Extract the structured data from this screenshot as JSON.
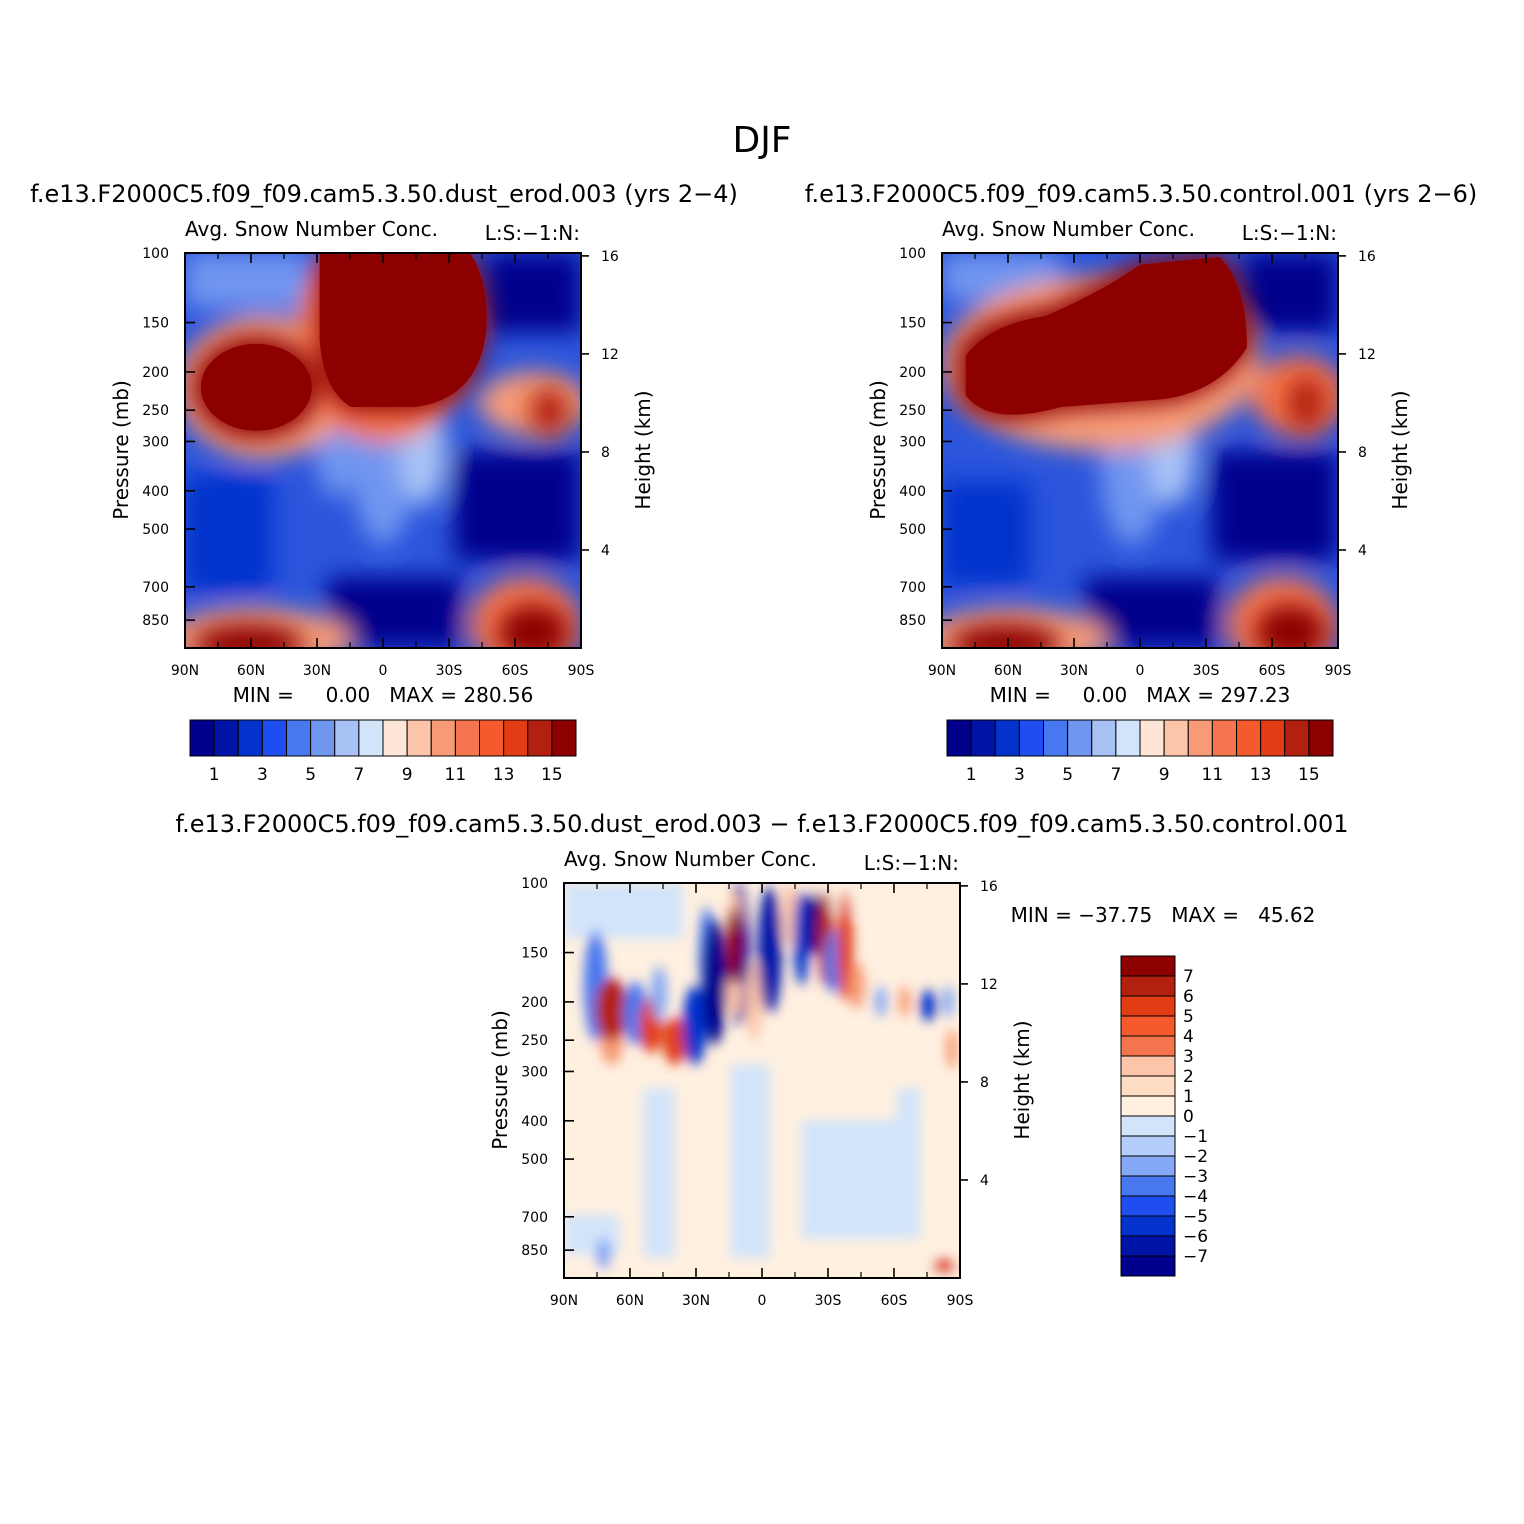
{
  "figure_title": "DJF",
  "panels": [
    {
      "case_title": "f.e13.F2000C5.f09_f09.cam5.3.50.dust_erod.003 (yrs 2−4)",
      "subtitle": "Avg. Snow Number Conc.",
      "right_string": "L:S:−1:N:",
      "min_max": "MIN =     0.00   MAX = 280.56"
    },
    {
      "case_title": "f.e13.F2000C5.f09_f09.cam5.3.50.control.001 (yrs 2−6)",
      "subtitle": "Avg. Snow Number Conc.",
      "right_string": "L:S:−1:N:",
      "min_max": "MIN =     0.00   MAX = 297.23"
    },
    {
      "case_title": "f.e13.F2000C5.f09_f09.cam5.3.50.dust_erod.003 − f.e13.F2000C5.f09_f09.cam5.3.50.control.001",
      "subtitle": "Avg. Snow Number Conc.",
      "right_string": "L:S:−1:N:",
      "min_max": "MIN = −37.75   MAX =   45.62"
    }
  ],
  "chart_data": [
    {
      "type": "heatmap",
      "panel": "dust_erod.003",
      "xlabel": "",
      "ylabel": "Pressure (mb)",
      "ylabel_right": "Height (km)",
      "x_tick_labels": [
        "90N",
        "60N",
        "30N",
        "0",
        "30S",
        "60S",
        "90S"
      ],
      "x_tick_values": [
        90,
        60,
        30,
        0,
        -30,
        -60,
        -90
      ],
      "xlim": [
        90,
        -90
      ],
      "y_tick_values": [
        100,
        150,
        200,
        250,
        300,
        400,
        500,
        700,
        850
      ],
      "y_tick_labels": [
        "100",
        "150",
        "200",
        "250",
        "300",
        "400",
        "500",
        "700",
        "850"
      ],
      "ylim": [
        100,
        1000
      ],
      "y_scale": "log",
      "y_right_tick_labels": [
        "16",
        "12",
        "8",
        "4"
      ],
      "y_right_tick_values": [
        16,
        12,
        8,
        4
      ],
      "colorbar_labels": [
        "1",
        "3",
        "5",
        "7",
        "9",
        "11",
        "13",
        "15"
      ],
      "colorbar_orientation": "horizontal",
      "colors": [
        "#00008c",
        "#0015a8",
        "#0432cc",
        "#1f4ef0",
        "#4878f0",
        "#7196f0",
        "#a8c2f5",
        "#d2e4fa",
        "#fde6d6",
        "#fcc4a8",
        "#f79b77",
        "#f5764e",
        "#f55a2c",
        "#e13c14",
        "#b42010",
        "#8c0000"
      ],
      "min": 0.0,
      "max": 280.56,
      "features": [
        {
          "lat_range": [
            0,
            -30
          ],
          "p_range": [
            100,
            250
          ],
          "value": "high"
        },
        {
          "lat_range": [
            90,
            35
          ],
          "p_range": [
            160,
            280
          ],
          "value": "high"
        },
        {
          "lat_range": [
            90,
            30
          ],
          "p_range": [
            800,
            1000
          ],
          "value": "high"
        },
        {
          "lat_range": [
            -55,
            -85
          ],
          "p_range": [
            780,
            1000
          ],
          "value": "high"
        },
        {
          "lat_range": [
            -60,
            -90
          ],
          "p_range": [
            100,
            160
          ],
          "value": "low"
        }
      ]
    },
    {
      "type": "heatmap",
      "panel": "control.001",
      "xlabel": "",
      "ylabel": "Pressure (mb)",
      "ylabel_right": "Height (km)",
      "x_tick_labels": [
        "90N",
        "60N",
        "30N",
        "0",
        "30S",
        "60S",
        "90S"
      ],
      "x_tick_values": [
        90,
        60,
        30,
        0,
        -30,
        -60,
        -90
      ],
      "xlim": [
        90,
        -90
      ],
      "y_tick_values": [
        100,
        150,
        200,
        250,
        300,
        400,
        500,
        700,
        850
      ],
      "y_tick_labels": [
        "100",
        "150",
        "200",
        "250",
        "300",
        "400",
        "500",
        "700",
        "850"
      ],
      "ylim": [
        100,
        1000
      ],
      "y_scale": "log",
      "y_right_tick_labels": [
        "16",
        "12",
        "8",
        "4"
      ],
      "y_right_tick_values": [
        16,
        12,
        8,
        4
      ],
      "colorbar_labels": [
        "1",
        "3",
        "5",
        "7",
        "9",
        "11",
        "13",
        "15"
      ],
      "colorbar_orientation": "horizontal",
      "colors": [
        "#00008c",
        "#0015a8",
        "#0432cc",
        "#1f4ef0",
        "#4878f0",
        "#7196f0",
        "#a8c2f5",
        "#d2e4fa",
        "#fde6d6",
        "#fcc4a8",
        "#f79b77",
        "#f5764e",
        "#f55a2c",
        "#e13c14",
        "#b42010",
        "#8c0000"
      ],
      "min": 0.0,
      "max": 297.23,
      "features": [
        {
          "lat_range": [
            80,
            -45
          ],
          "p_range": [
            100,
            260
          ],
          "value": "high"
        },
        {
          "lat_range": [
            90,
            40
          ],
          "p_range": [
            800,
            1000
          ],
          "value": "high"
        },
        {
          "lat_range": [
            -55,
            -85
          ],
          "p_range": [
            780,
            1000
          ],
          "value": "high"
        },
        {
          "lat_range": [
            -55,
            -90
          ],
          "p_range": [
            100,
            160
          ],
          "value": "low"
        }
      ]
    },
    {
      "type": "heatmap",
      "panel": "difference",
      "xlabel": "",
      "ylabel": "Pressure (mb)",
      "ylabel_right": "Height (km)",
      "x_tick_labels": [
        "90N",
        "60N",
        "30N",
        "0",
        "30S",
        "60S",
        "90S"
      ],
      "x_tick_values": [
        90,
        60,
        30,
        0,
        -30,
        -60,
        -90
      ],
      "xlim": [
        90,
        -90
      ],
      "y_tick_values": [
        100,
        150,
        200,
        250,
        300,
        400,
        500,
        700,
        850
      ],
      "y_tick_labels": [
        "100",
        "150",
        "200",
        "250",
        "300",
        "400",
        "500",
        "700",
        "850"
      ],
      "ylim": [
        100,
        1000
      ],
      "y_scale": "log",
      "y_right_tick_labels": [
        "16",
        "12",
        "8",
        "4"
      ],
      "y_right_tick_values": [
        16,
        12,
        8,
        4
      ],
      "colorbar_labels": [
        "7",
        "6",
        "5",
        "4",
        "3",
        "2",
        "1",
        "0",
        "−1",
        "−2",
        "−3",
        "−4",
        "−5",
        "−6",
        "−7"
      ],
      "colorbar_orientation": "vertical",
      "colors": [
        "#8c0000",
        "#b42010",
        "#e13c14",
        "#f55a2c",
        "#f5764e",
        "#fcc4a8",
        "#ffdcc4",
        "#fff0e0",
        "#d2e4fa",
        "#b4cdfa",
        "#84a8f5",
        "#4878f0",
        "#1f4ef0",
        "#0432cc",
        "#0015a8",
        "#00008c"
      ],
      "min": -37.75,
      "max": 45.62
    }
  ]
}
